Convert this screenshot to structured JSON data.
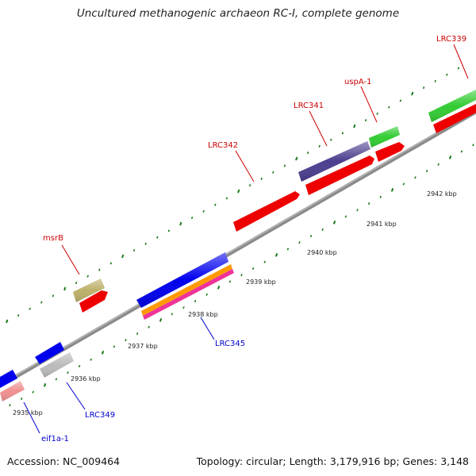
{
  "title": "Uncultured methanogenic archaeon RC-I, complete genome",
  "footer": {
    "accession": "Accession: NC_009464",
    "stats": "Topology: circular; Length: 3,179,916 bp; Genes: 3,148"
  },
  "colors": {
    "forward_label": "#cc0000",
    "reverse_label": "#0000cc",
    "backbone": "#8a8a8a",
    "tick": "#1a7a1a"
  },
  "ticks": [
    "2935 kbp",
    "2936 kbp",
    "2937 kbp",
    "2938 kbp",
    "2939 kbp",
    "2940 kbp",
    "2941 kbp",
    "2942 kbp"
  ],
  "features": [
    {
      "id": "red-f-1",
      "kind": "cds",
      "strand": "forward",
      "color": "#ee0000"
    },
    {
      "id": "red-f-2",
      "kind": "cds",
      "strand": "forward",
      "color": "#ee0000"
    },
    {
      "id": "red-f-3",
      "kind": "cds",
      "strand": "forward",
      "color": "#ee0000"
    },
    {
      "id": "red-f-4",
      "kind": "cds",
      "strand": "forward",
      "color": "#ee0000"
    },
    {
      "id": "red-f-5",
      "kind": "cds",
      "strand": "forward",
      "color": "#ee0000"
    },
    {
      "id": "msrB",
      "kind": "gene",
      "strand": "forward",
      "color": "#bdb06a"
    },
    {
      "id": "LRC341",
      "kind": "gene",
      "strand": "forward",
      "color": "#4b3f8f"
    },
    {
      "id": "uspA-1",
      "kind": "gene",
      "strand": "forward",
      "color": "#33cc33"
    },
    {
      "id": "LRC339",
      "kind": "gene",
      "strand": "forward",
      "color": "#33cc33"
    },
    {
      "id": "LRC345",
      "kind": "gene",
      "strand": "reverse",
      "color": "#0000ee"
    },
    {
      "id": "LRC345-b",
      "kind": "misc",
      "strand": "reverse",
      "color": "#ff9900"
    },
    {
      "id": "LRC345-c",
      "kind": "misc",
      "strand": "reverse",
      "color": "#ee3399"
    },
    {
      "id": "blue-r-1",
      "kind": "gene",
      "strand": "reverse",
      "color": "#0000ee"
    },
    {
      "id": "blue-r-2",
      "kind": "gene",
      "strand": "reverse",
      "color": "#0000ee"
    },
    {
      "id": "LRC349",
      "kind": "gene",
      "strand": "reverse",
      "color": "#bbbbbb"
    },
    {
      "id": "eif1a-1",
      "kind": "gene",
      "strand": "reverse",
      "color": "#f09090"
    }
  ],
  "labels": {
    "msrB": "msrB",
    "LRC342": "LRC342",
    "LRC341": "LRC341",
    "uspA-1": "uspA-1",
    "LRC339": "LRC339",
    "LRC345": "LRC345",
    "LRC349": "LRC349",
    "eif1a-1": "eif1a-1"
  }
}
